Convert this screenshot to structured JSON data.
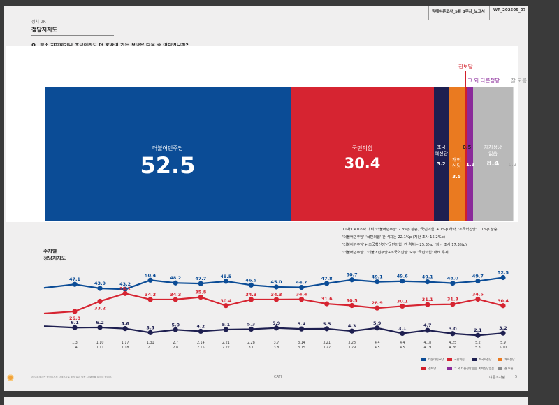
{
  "header": {
    "section": "정치 2K",
    "title": "정당지지도",
    "report_name": "정례여론조사_5월 3주차_보고서",
    "report_code": "WR_202505_07",
    "question": "Q_ 평소 지지하거나 조금이라도 더 호감이 가는 정당은 다음 중 어디입니까?"
  },
  "bar_chart": {
    "segments": [
      {
        "name": "더불어민주당",
        "value": "52.5",
        "color": "#0b4c96"
      },
      {
        "name": "국민의힘",
        "value": "30.4",
        "color": "#d62431"
      },
      {
        "name": "조국\n혁신당",
        "value": "3.2",
        "color": "#1e1f50"
      },
      {
        "name": "개혁\n신당",
        "value": "3.5",
        "color": "#ea7a20"
      },
      {
        "name": "진보당",
        "value": "0.5",
        "color": "#d21f2a"
      },
      {
        "name": "그 외 다른정당",
        "value": "1.3",
        "color": "#8a2a9a"
      },
      {
        "name": "지지정당\n없음",
        "value": "8.4",
        "color": "#b9b9b9"
      },
      {
        "name": "잘 모름",
        "value": "0.2",
        "color": "#d9d9d9"
      }
    ]
  },
  "notes": [
    "11차 CATI조사 대비 '더불어민주당' 2.8%p 상승, '국민의힘' 4.1%p 하락, '조국혁신당' 1.1%p 상승",
    "'더불어민주당'-'국민의힘' 간 격차는 22.1%p (지난 조사 15.2%p)",
    "'더불어민주당'+'조국혁신당'-'국민의힘' 간 격차는 25.3%p (지난 조사 17.3%p)",
    "'더불어민주당', '더불어민주당+조국혁신당' 모두 '국민의힘' 대비 우세"
  ],
  "trend_title_1": "주차별",
  "trend_title_2": "정당지지도",
  "chart_data": {
    "type": "line",
    "title": "주차별 정당지지도",
    "x_top": [
      "1.3",
      "1.10",
      "1.17",
      "1.31",
      "2.7",
      "2.14",
      "2.21",
      "2.28",
      "3.7",
      "3.14",
      "3.21",
      "3.28",
      "4.4",
      "4.4",
      "4.18",
      "4.25",
      "5.2",
      "5.9"
    ],
    "x_bottom": [
      "1.4",
      "1.11",
      "1.18",
      "2.1",
      "2.8",
      "2.15",
      "2.22",
      "3.1",
      "3.8",
      "3.15",
      "3.22",
      "3.29",
      "4.5",
      "4.5",
      "4.19",
      "4.26",
      "5.3",
      "5.10"
    ],
    "series": [
      {
        "name": "더불어민주당",
        "color": "#0b4c96",
        "values": [
          47.1,
          43.9,
          43.2,
          50.4,
          48.2,
          47.7,
          49.5,
          46.5,
          45.0,
          44.7,
          47.8,
          50.7,
          49.1,
          49.6,
          49.1,
          48.0,
          49.7,
          52.5
        ],
        "labels": [
          "47.1",
          "43.9",
          "43.2",
          "50.4",
          "48.2",
          "47.7",
          "49.5",
          "46.5",
          "45.0",
          "44.7",
          "47.8",
          "50.7",
          "49.1",
          "49.6",
          "49.1",
          "48.0",
          "49.7",
          "52.5"
        ]
      },
      {
        "name": "국민의힘",
        "color": "#d62431",
        "values": [
          26.8,
          33.2,
          38.1,
          34.3,
          34.3,
          35.8,
          30.4,
          34.3,
          34.3,
          34.4,
          31.6,
          30.5,
          28.9,
          30.1,
          31.1,
          31.3,
          34.5,
          30.4
        ],
        "labels": [
          "26.8",
          "33.2",
          "38.1",
          "34.3",
          "34.3",
          "35.8",
          "30.4",
          "34.3",
          "34.3",
          "34.4",
          "31.6",
          "30.5",
          "28.9",
          "30.1",
          "31.1",
          "31.3",
          "34.5",
          "30.4"
        ]
      },
      {
        "name": "조국혁신당",
        "color": "#1e1f50",
        "values": [
          6.1,
          6.2,
          5.6,
          3.5,
          5.0,
          4.2,
          5.1,
          5.3,
          5.9,
          5.4,
          5.5,
          4.3,
          5.9,
          3.1,
          4.7,
          3.0,
          2.1,
          3.2
        ],
        "labels": [
          "6.1",
          "6.2",
          "5.6",
          "3.5",
          "5.0",
          "4.2",
          "5.1",
          "5.3",
          "5.9",
          "5.4",
          "5.5",
          "4.3",
          "5.9",
          "3.1",
          "4.7",
          "3.0",
          "2.1",
          "3.2"
        ]
      }
    ]
  },
  "legend": [
    {
      "label": "더불어민주당",
      "color": "#0b4c96"
    },
    {
      "label": "국민의힘",
      "color": "#d62431"
    },
    {
      "label": "조국혁신당",
      "color": "#1e1f50"
    },
    {
      "label": "개혁신당",
      "color": "#ea7a20"
    },
    {
      "label": "진보당",
      "color": "#d21f2a"
    },
    {
      "label": "그 외 다른정당",
      "color": "#8a2a9a"
    },
    {
      "label": "지지정당없음",
      "color": "#b9b9b9"
    },
    {
      "label": "잘 모름",
      "color": "#8c8c8c"
    }
  ],
  "footer": {
    "left": "본 여론조사는 한국리서치 자체조사로 조사 결과 활용 시 출처를 밝혀야 합니다.",
    "center": "CATI",
    "right": "여론조사팀",
    "page": "5"
  }
}
